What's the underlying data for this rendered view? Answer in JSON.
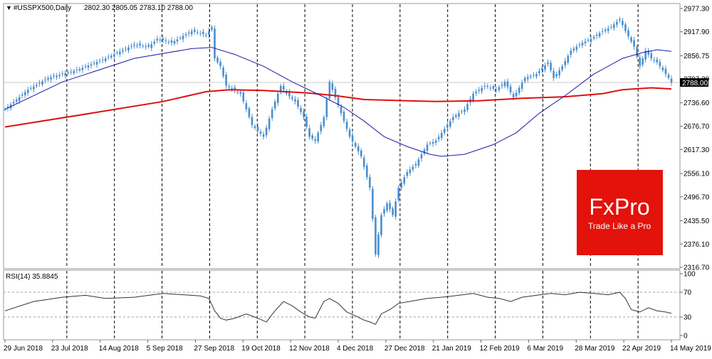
{
  "chart_data": [
    {
      "type": "candlestick",
      "title": "#USSPX500,Daily",
      "ohlc_header": "2802.30 2805.05 2783.10 2788.00",
      "ylim": [
        2316.7,
        2977.3
      ],
      "ytick_labels": [
        "2977.30",
        "2917.90",
        "2856.75",
        "2797.30",
        "2736.60",
        "2676.70",
        "2617.30",
        "2556.10",
        "2496.70",
        "2435.50",
        "2376.10",
        "2316.70"
      ],
      "current_price_label": "2788.00",
      "current_price": 2788.0,
      "xtick_labels": [
        "29 Jun 2018",
        "23 Jul 2018",
        "14 Aug 2018",
        "5 Sep 2018",
        "27 Sep 2018",
        "19 Oct 2018",
        "12 Nov 2018",
        "4 Dec 2018",
        "27 Dec 2018",
        "21 Jan 2019",
        "12 Feb 2019",
        "6 Mar 2019",
        "28 Mar 2019",
        "22 Apr 2019",
        "14 May 2019"
      ],
      "grid": "vertical dashed",
      "series_colors": {
        "candles": "#4a8fcf",
        "ma_fast": "#1a1aa8",
        "ma_slow": "#dd1111",
        "price_line": "#bdbdbd"
      },
      "close_points": [
        [
          0,
          2720
        ],
        [
          8,
          2770
        ],
        [
          15,
          2800
        ],
        [
          25,
          2820
        ],
        [
          35,
          2850
        ],
        [
          45,
          2885
        ],
        [
          50,
          2880
        ],
        [
          53,
          2900
        ],
        [
          58,
          2890
        ],
        [
          65,
          2920
        ],
        [
          70,
          2910
        ],
        [
          72,
          2930
        ],
        [
          73,
          2850
        ],
        [
          75,
          2830
        ],
        [
          77,
          2780
        ],
        [
          82,
          2760
        ],
        [
          86,
          2680
        ],
        [
          90,
          2650
        ],
        [
          93,
          2720
        ],
        [
          96,
          2780
        ],
        [
          98,
          2760
        ],
        [
          101,
          2740
        ],
        [
          104,
          2700
        ],
        [
          106,
          2650
        ],
        [
          108,
          2640
        ],
        [
          111,
          2700
        ],
        [
          113,
          2790
        ],
        [
          116,
          2730
        ],
        [
          120,
          2650
        ],
        [
          124,
          2600
        ],
        [
          127,
          2520
        ],
        [
          128,
          2440
        ],
        [
          129,
          2350
        ],
        [
          131,
          2450
        ],
        [
          133,
          2480
        ],
        [
          135,
          2450
        ],
        [
          137,
          2520
        ],
        [
          140,
          2560
        ],
        [
          143,
          2580
        ],
        [
          147,
          2630
        ],
        [
          150,
          2640
        ],
        [
          153,
          2670
        ],
        [
          156,
          2700
        ],
        [
          160,
          2720
        ],
        [
          163,
          2760
        ],
        [
          167,
          2780
        ],
        [
          171,
          2770
        ],
        [
          174,
          2790
        ],
        [
          177,
          2750
        ],
        [
          181,
          2800
        ],
        [
          185,
          2810
        ],
        [
          189,
          2840
        ],
        [
          191,
          2800
        ],
        [
          194,
          2830
        ],
        [
          197,
          2870
        ],
        [
          201,
          2890
        ],
        [
          204,
          2900
        ],
        [
          208,
          2920
        ],
        [
          211,
          2930
        ],
        [
          214,
          2950
        ],
        [
          216,
          2920
        ],
        [
          219,
          2880
        ],
        [
          221,
          2830
        ],
        [
          223,
          2870
        ],
        [
          225,
          2850
        ],
        [
          227,
          2840
        ],
        [
          229,
          2820
        ],
        [
          231,
          2800
        ],
        [
          232,
          2788
        ]
      ],
      "ma_fast_points": [
        [
          0,
          2720
        ],
        [
          20,
          2790
        ],
        [
          45,
          2850
        ],
        [
          65,
          2875
        ],
        [
          72,
          2878
        ],
        [
          80,
          2860
        ],
        [
          90,
          2830
        ],
        [
          100,
          2790
        ],
        [
          110,
          2755
        ],
        [
          118,
          2725
        ],
        [
          125,
          2690
        ],
        [
          132,
          2650
        ],
        [
          140,
          2625
        ],
        [
          148,
          2605
        ],
        [
          152,
          2600
        ],
        [
          160,
          2605
        ],
        [
          170,
          2630
        ],
        [
          178,
          2660
        ],
        [
          186,
          2710
        ],
        [
          195,
          2755
        ],
        [
          205,
          2810
        ],
        [
          215,
          2850
        ],
        [
          222,
          2865
        ],
        [
          227,
          2872
        ],
        [
          232,
          2868
        ]
      ],
      "ma_slow_points": [
        [
          0,
          2675
        ],
        [
          30,
          2710
        ],
        [
          55,
          2740
        ],
        [
          70,
          2765
        ],
        [
          78,
          2770
        ],
        [
          90,
          2768
        ],
        [
          105,
          2762
        ],
        [
          115,
          2755
        ],
        [
          125,
          2745
        ],
        [
          140,
          2742
        ],
        [
          150,
          2740
        ],
        [
          165,
          2742
        ],
        [
          180,
          2748
        ],
        [
          195,
          2752
        ],
        [
          208,
          2760
        ],
        [
          215,
          2770
        ],
        [
          225,
          2775
        ],
        [
          232,
          2772
        ]
      ]
    },
    {
      "type": "line",
      "title": "RSI(14) 35.8845",
      "ylim": [
        0,
        100
      ],
      "ytick_labels": [
        "100",
        "70",
        "30",
        "0"
      ],
      "levels": [
        70,
        30
      ],
      "grid": "vertical dashed",
      "line_color": "#333333",
      "rsi_points": [
        [
          0,
          40
        ],
        [
          10,
          55
        ],
        [
          20,
          62
        ],
        [
          28,
          65
        ],
        [
          35,
          60
        ],
        [
          45,
          62
        ],
        [
          55,
          68
        ],
        [
          62,
          66
        ],
        [
          68,
          64
        ],
        [
          71,
          60
        ],
        [
          73,
          40
        ],
        [
          75,
          28
        ],
        [
          77,
          25
        ],
        [
          80,
          28
        ],
        [
          84,
          35
        ],
        [
          88,
          28
        ],
        [
          91,
          22
        ],
        [
          94,
          40
        ],
        [
          97,
          55
        ],
        [
          100,
          48
        ],
        [
          103,
          38
        ],
        [
          106,
          30
        ],
        [
          108,
          28
        ],
        [
          111,
          55
        ],
        [
          113,
          60
        ],
        [
          116,
          52
        ],
        [
          119,
          38
        ],
        [
          122,
          32
        ],
        [
          125,
          25
        ],
        [
          127,
          22
        ],
        [
          129,
          18
        ],
        [
          131,
          35
        ],
        [
          134,
          42
        ],
        [
          137,
          52
        ],
        [
          142,
          56
        ],
        [
          147,
          60
        ],
        [
          152,
          62
        ],
        [
          158,
          65
        ],
        [
          163,
          68
        ],
        [
          168,
          62
        ],
        [
          172,
          60
        ],
        [
          176,
          55
        ],
        [
          180,
          62
        ],
        [
          185,
          65
        ],
        [
          190,
          68
        ],
        [
          195,
          66
        ],
        [
          200,
          70
        ],
        [
          205,
          68
        ],
        [
          210,
          66
        ],
        [
          214,
          70
        ],
        [
          216,
          60
        ],
        [
          218,
          42
        ],
        [
          221,
          38
        ],
        [
          224,
          45
        ],
        [
          227,
          40
        ],
        [
          230,
          38
        ],
        [
          232,
          36
        ]
      ]
    }
  ],
  "branding": {
    "logo_text": "FxPro",
    "tagline": "Trade Like a Pro",
    "logo_color": "#e3120b"
  }
}
